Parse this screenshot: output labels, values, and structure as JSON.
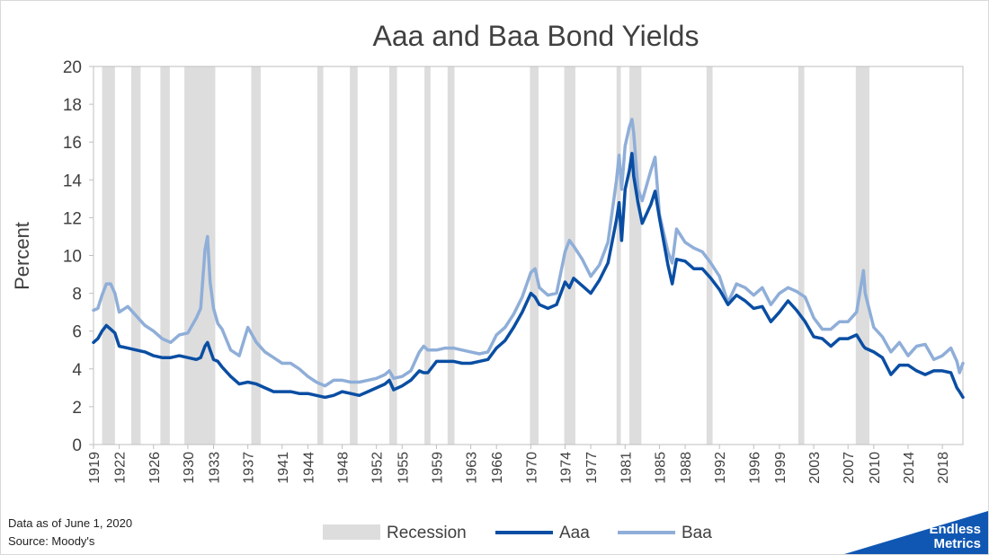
{
  "chart_data": {
    "type": "line",
    "title": "Aaa and Baa Bond Yields",
    "ylabel": "Percent",
    "xlabel": "",
    "ylim": [
      0,
      20
    ],
    "yticks": [
      "0",
      "2",
      "4",
      "6",
      "8",
      "10",
      "12",
      "14",
      "16",
      "18",
      "20"
    ],
    "xlim": [
      1919,
      2020.4
    ],
    "xticks": [
      "1919",
      "1922",
      "1926",
      "1930",
      "1933",
      "1937",
      "1941",
      "1944",
      "1948",
      "1952",
      "1955",
      "1959",
      "1963",
      "1966",
      "1970",
      "1974",
      "1977",
      "1981",
      "1985",
      "1988",
      "1992",
      "1996",
      "1999",
      "2003",
      "2007",
      "2010",
      "2014",
      "2018"
    ],
    "grid": false,
    "legend_position": "bottom",
    "legend": {
      "recession": "Recession",
      "aaa": "Aaa",
      "baa": "Baa"
    },
    "colors": {
      "aaa": "#0a4ea3",
      "baa": "#8faed8",
      "recession": "#dddddd",
      "axis": "#bfbfbf",
      "text": "#404040"
    },
    "recessions": [
      [
        1920.0,
        1921.5
      ],
      [
        1923.4,
        1924.5
      ],
      [
        1926.8,
        1927.9
      ],
      [
        1929.6,
        1933.2
      ],
      [
        1937.4,
        1938.5
      ],
      [
        1945.1,
        1945.8
      ],
      [
        1948.9,
        1949.8
      ],
      [
        1953.5,
        1954.4
      ],
      [
        1957.6,
        1958.3
      ],
      [
        1960.3,
        1961.1
      ],
      [
        1969.9,
        1970.9
      ],
      [
        1973.9,
        1975.2
      ],
      [
        1980.0,
        1980.5
      ],
      [
        1981.5,
        1982.9
      ],
      [
        1990.5,
        1991.2
      ],
      [
        2001.2,
        2001.9
      ],
      [
        2007.9,
        2009.5
      ]
    ],
    "series": [
      {
        "name": "Aaa",
        "x": [
          1919,
          1919.5,
          1920,
          1920.5,
          1921,
          1921.5,
          1922,
          1923,
          1924,
          1925,
          1926,
          1927,
          1928,
          1929,
          1930,
          1931,
          1931.5,
          1932,
          1932.3,
          1932.6,
          1933,
          1933.5,
          1934,
          1935,
          1936,
          1937,
          1938,
          1939,
          1940,
          1941,
          1942,
          1943,
          1944,
          1945,
          1946,
          1947,
          1948,
          1949,
          1950,
          1951,
          1952,
          1953,
          1953.5,
          1954,
          1955,
          1956,
          1957,
          1957.5,
          1958,
          1959,
          1960,
          1961,
          1962,
          1963,
          1964,
          1965,
          1966,
          1967,
          1968,
          1969,
          1970,
          1970.5,
          1971,
          1972,
          1973,
          1974,
          1974.5,
          1975,
          1976,
          1977,
          1978,
          1979,
          1980,
          1980.3,
          1980.6,
          1981,
          1981.5,
          1981.8,
          1982,
          1982.5,
          1983,
          1984,
          1984.5,
          1985,
          1986,
          1986.5,
          1987,
          1988,
          1989,
          1990,
          1991,
          1992,
          1993,
          1994,
          1995,
          1996,
          1997,
          1998,
          1999,
          2000,
          2001,
          2002,
          2003,
          2004,
          2005,
          2006,
          2007,
          2008,
          2008.8,
          2009,
          2010,
          2011,
          2012,
          2013,
          2014,
          2015,
          2016,
          2017,
          2018,
          2019,
          2019.7,
          2020,
          2020.4
        ],
        "y": [
          5.4,
          5.6,
          6.0,
          6.3,
          6.1,
          5.9,
          5.2,
          5.1,
          5.0,
          4.9,
          4.7,
          4.6,
          4.6,
          4.7,
          4.6,
          4.5,
          4.6,
          5.2,
          5.4,
          5.0,
          4.5,
          4.4,
          4.1,
          3.6,
          3.2,
          3.3,
          3.2,
          3.0,
          2.8,
          2.8,
          2.8,
          2.7,
          2.7,
          2.6,
          2.5,
          2.6,
          2.8,
          2.7,
          2.6,
          2.8,
          3.0,
          3.2,
          3.4,
          2.9,
          3.1,
          3.4,
          3.9,
          3.8,
          3.8,
          4.4,
          4.4,
          4.4,
          4.3,
          4.3,
          4.4,
          4.5,
          5.1,
          5.5,
          6.2,
          7.0,
          8.0,
          7.8,
          7.4,
          7.2,
          7.4,
          8.6,
          8.3,
          8.8,
          8.4,
          8.0,
          8.7,
          9.6,
          11.9,
          12.8,
          10.8,
          13.5,
          14.5,
          15.4,
          14.2,
          12.8,
          11.7,
          12.7,
          13.4,
          12.0,
          9.5,
          8.5,
          9.8,
          9.7,
          9.3,
          9.3,
          8.8,
          8.2,
          7.4,
          7.9,
          7.6,
          7.2,
          7.3,
          6.5,
          7.0,
          7.6,
          7.1,
          6.5,
          5.7,
          5.6,
          5.2,
          5.6,
          5.6,
          5.8,
          5.2,
          5.1,
          4.9,
          4.6,
          3.7,
          4.2,
          4.2,
          3.9,
          3.7,
          3.9,
          3.9,
          3.8,
          3.0,
          2.8,
          2.5
        ]
      },
      {
        "name": "Baa",
        "x": [
          1919,
          1919.5,
          1920,
          1920.5,
          1921,
          1921.5,
          1922,
          1923,
          1924,
          1925,
          1926,
          1927,
          1928,
          1929,
          1930,
          1931,
          1931.5,
          1932,
          1932.3,
          1932.6,
          1933,
          1933.5,
          1934,
          1935,
          1936,
          1937,
          1938,
          1939,
          1940,
          1941,
          1942,
          1943,
          1944,
          1945,
          1946,
          1947,
          1948,
          1949,
          1950,
          1951,
          1952,
          1953,
          1953.5,
          1954,
          1955,
          1956,
          1957,
          1957.5,
          1958,
          1959,
          1960,
          1961,
          1962,
          1963,
          1964,
          1965,
          1966,
          1967,
          1968,
          1969,
          1970,
          1970.5,
          1971,
          1972,
          1973,
          1974,
          1974.5,
          1975,
          1976,
          1977,
          1978,
          1979,
          1980,
          1980.3,
          1980.6,
          1981,
          1981.5,
          1981.8,
          1982,
          1982.5,
          1983,
          1984,
          1984.5,
          1985,
          1986,
          1986.5,
          1987,
          1988,
          1989,
          1990,
          1991,
          1992,
          1993,
          1994,
          1995,
          1996,
          1997,
          1998,
          1999,
          2000,
          2001,
          2002,
          2003,
          2004,
          2005,
          2006,
          2007,
          2008,
          2008.8,
          2009,
          2010,
          2011,
          2012,
          2013,
          2014,
          2015,
          2016,
          2017,
          2018,
          2019,
          2019.7,
          2020,
          2020.4
        ],
        "y": [
          7.1,
          7.2,
          7.9,
          8.5,
          8.5,
          8.0,
          7.0,
          7.3,
          6.8,
          6.3,
          6.0,
          5.6,
          5.4,
          5.8,
          5.9,
          6.7,
          7.2,
          10.3,
          11.0,
          8.6,
          7.2,
          6.4,
          6.1,
          5.0,
          4.7,
          6.2,
          5.4,
          4.9,
          4.6,
          4.3,
          4.3,
          4.0,
          3.6,
          3.3,
          3.1,
          3.4,
          3.4,
          3.3,
          3.3,
          3.4,
          3.5,
          3.7,
          3.9,
          3.5,
          3.6,
          3.9,
          4.9,
          5.2,
          5.0,
          5.0,
          5.1,
          5.1,
          5.0,
          4.9,
          4.8,
          4.9,
          5.8,
          6.2,
          6.9,
          7.8,
          9.1,
          9.3,
          8.3,
          7.9,
          8.0,
          10.2,
          10.8,
          10.5,
          9.8,
          8.9,
          9.5,
          10.7,
          14.0,
          15.3,
          13.5,
          15.8,
          16.8,
          17.2,
          16.5,
          13.5,
          12.9,
          14.5,
          15.2,
          12.2,
          10.2,
          9.6,
          11.4,
          10.7,
          10.4,
          10.2,
          9.6,
          8.9,
          7.5,
          8.5,
          8.3,
          7.9,
          8.3,
          7.4,
          8.0,
          8.3,
          8.1,
          7.8,
          6.7,
          6.1,
          6.1,
          6.5,
          6.5,
          7.0,
          9.2,
          8.0,
          6.2,
          5.7,
          4.9,
          5.4,
          4.7,
          5.2,
          5.3,
          4.5,
          4.7,
          5.1,
          4.4,
          3.8,
          4.3
        ]
      }
    ]
  },
  "footer": {
    "line1": "Data as of June 1, 2020",
    "line2": "Source: Moody's"
  },
  "brand": {
    "line1": "Endless",
    "line2": "Metrics",
    "color": "#1057b3"
  }
}
